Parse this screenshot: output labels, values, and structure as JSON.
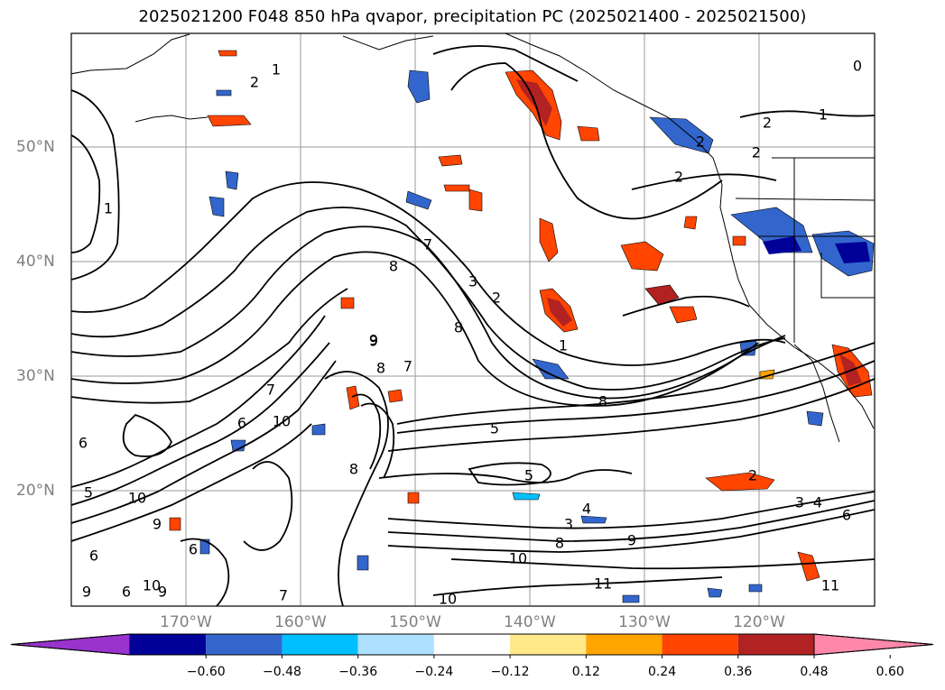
{
  "title": "2025021200 F048 850 hPa qvapor, precipitation PC (2025021400 - 2025021500)",
  "map": {
    "lat_labels": [
      "50°N",
      "40°N",
      "30°N",
      "20°N"
    ],
    "lon_labels": [
      "170°W",
      "160°W",
      "150°W",
      "140°W",
      "130°W",
      "120°W"
    ],
    "contour_labels": [
      {
        "text": "2"
      },
      {
        "text": "1"
      },
      {
        "text": "0"
      },
      {
        "text": "1"
      },
      {
        "text": "2"
      },
      {
        "text": "2"
      },
      {
        "text": "2"
      },
      {
        "text": "2"
      },
      {
        "text": "1"
      },
      {
        "text": "7"
      },
      {
        "text": "3"
      },
      {
        "text": "2"
      },
      {
        "text": "8"
      },
      {
        "text": "1"
      },
      {
        "text": "8"
      },
      {
        "text": "9"
      },
      {
        "text": "7"
      },
      {
        "text": "8"
      },
      {
        "text": "7"
      },
      {
        "text": "10"
      },
      {
        "text": "6"
      },
      {
        "text": "8"
      },
      {
        "text": "5"
      },
      {
        "text": "5"
      },
      {
        "text": "4"
      },
      {
        "text": "3"
      },
      {
        "text": "2"
      },
      {
        "text": "3"
      },
      {
        "text": "4"
      },
      {
        "text": "6"
      },
      {
        "text": "6"
      },
      {
        "text": "8"
      },
      {
        "text": "9"
      },
      {
        "text": "10"
      },
      {
        "text": "11"
      },
      {
        "text": "10"
      },
      {
        "text": "11"
      },
      {
        "text": "9"
      },
      {
        "text": "9"
      },
      {
        "text": "10"
      },
      {
        "text": "9"
      },
      {
        "text": "6"
      },
      {
        "text": "7"
      },
      {
        "text": "5"
      },
      {
        "text": "10"
      },
      {
        "text": "6"
      },
      {
        "text": "8"
      },
      {
        "text": "9"
      },
      {
        "text": "6"
      }
    ]
  },
  "colorbar": {
    "colors": [
      "#9933cc",
      "#000099",
      "#3366cc",
      "#00bfff",
      "#aee0ff",
      "#ffffff",
      "#ffe888",
      "#ffa500",
      "#ff4500",
      "#b22222",
      "#ff88aa"
    ],
    "ticks": [
      "−0.60",
      "−0.48",
      "−0.36",
      "−0.24",
      "−0.12",
      "0.12",
      "0.24",
      "0.36",
      "0.48",
      "0.60"
    ]
  }
}
